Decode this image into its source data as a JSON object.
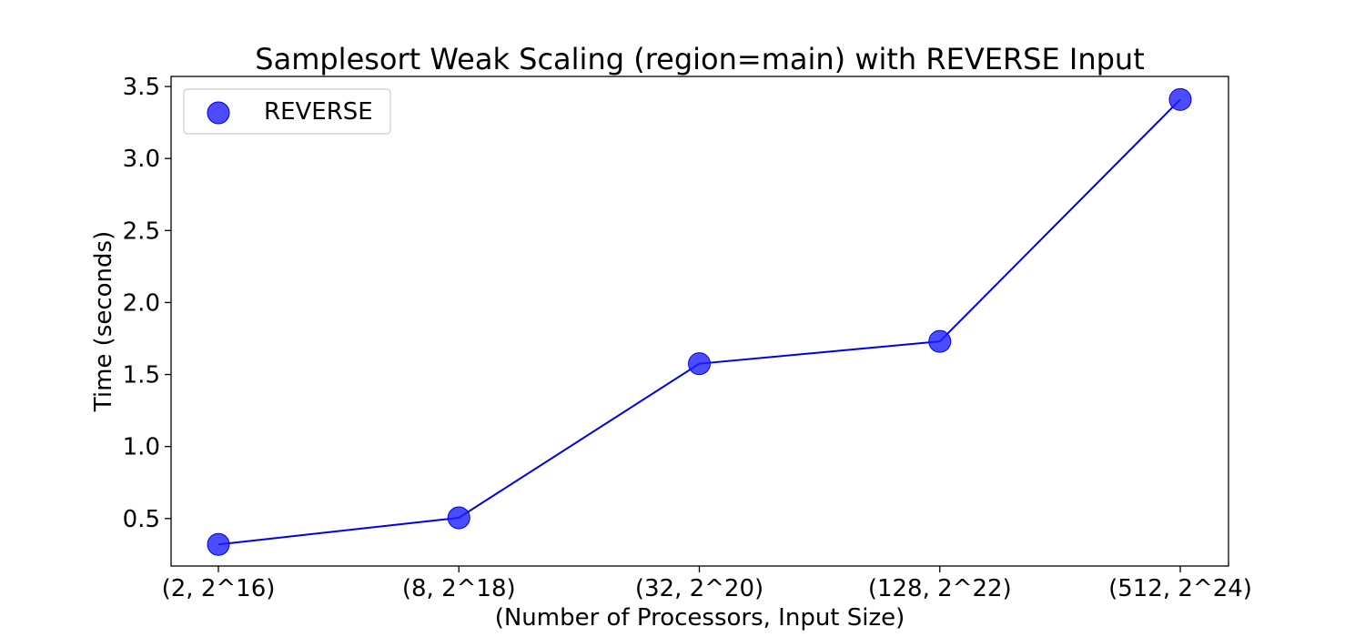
{
  "chart_data": {
    "type": "line",
    "title": "Samplesort Weak Scaling (region=main) with REVERSE Input",
    "xlabel": "(Number of Processors, Input Size)",
    "ylabel": "Time (seconds)",
    "categories": [
      "(2, 2^16)",
      "(8, 2^18)",
      "(32, 2^20)",
      "(128, 2^22)",
      "(512, 2^24)"
    ],
    "series": [
      {
        "name": "REVERSE",
        "values": [
          0.32,
          0.505,
          1.575,
          1.73,
          3.41
        ],
        "color": "#0000e6",
        "marker_color": "#1f1fff",
        "marker": "circle"
      }
    ],
    "ylim": [
      0.17,
      3.57
    ],
    "yticks": [
      0.5,
      1.0,
      1.5,
      2.0,
      2.5,
      3.0,
      3.5
    ],
    "ytick_labels": [
      "0.5",
      "1.0",
      "1.5",
      "2.0",
      "2.5",
      "3.0",
      "3.5"
    ],
    "grid": false,
    "legend_position": "top-left"
  }
}
